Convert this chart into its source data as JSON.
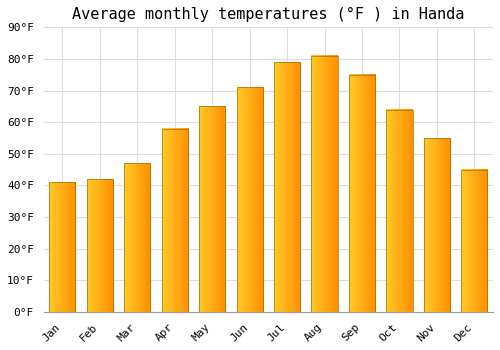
{
  "title": "Average monthly temperatures (°F ) in Handa",
  "months": [
    "Jan",
    "Feb",
    "Mar",
    "Apr",
    "May",
    "Jun",
    "Jul",
    "Aug",
    "Sep",
    "Oct",
    "Nov",
    "Dec"
  ],
  "values": [
    41,
    42,
    47,
    58,
    65,
    71,
    79,
    81,
    75,
    64,
    55,
    45
  ],
  "bar_color_left": "#FFB300",
  "bar_color_right": "#FFA000",
  "bar_color_center": "#FFCA28",
  "bar_edge_color": "#B8860B",
  "ylim": [
    0,
    90
  ],
  "yticks": [
    0,
    10,
    20,
    30,
    40,
    50,
    60,
    70,
    80,
    90
  ],
  "background_color": "#FFFFFF",
  "grid_color": "#DDDDDD",
  "title_fontsize": 11,
  "tick_fontsize": 8,
  "font_family": "monospace",
  "bar_width": 0.7
}
